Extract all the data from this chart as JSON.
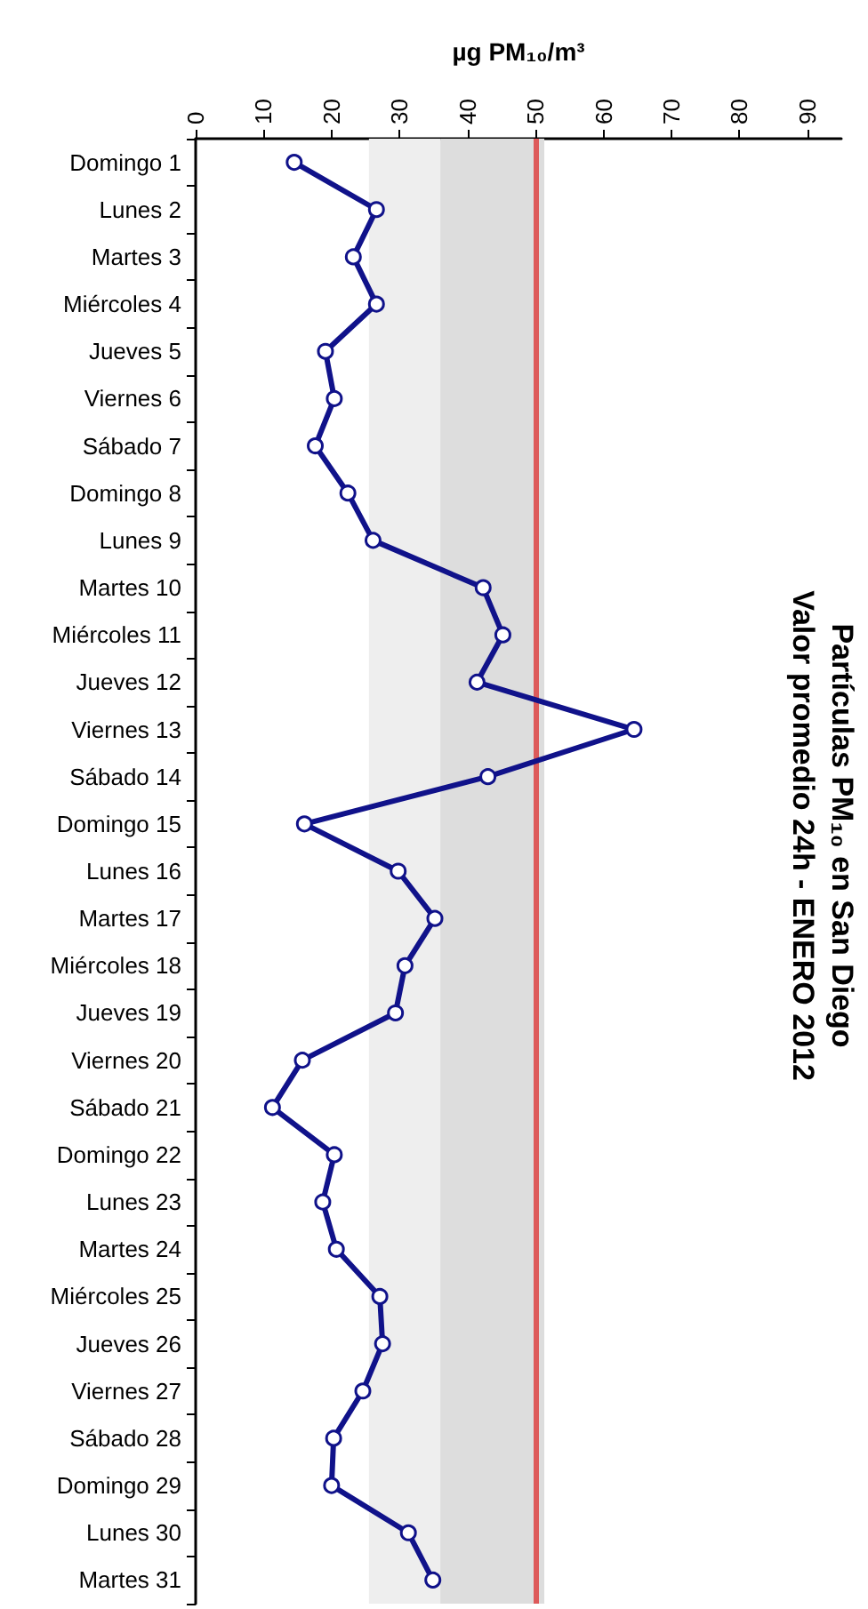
{
  "chart_data": {
    "type": "line",
    "orientation": "horizontal",
    "title": "Partículas PM₁₀ en San Diego",
    "subtitle": "Valor promedio 24h - ENERO 2012",
    "xlabel": "µg PM₁₀/m³",
    "categories": [
      "Domingo 1",
      "Lunes 2",
      "Martes 3",
      "Miércoles 4",
      "Jueves 5",
      "Viernes 6",
      "Sábado 7",
      "Domingo 8",
      "Lunes 9",
      "Martes 10",
      "Miércoles 11",
      "Jueves 12",
      "Viernes 13",
      "Sábado 14",
      "Domingo 15",
      "Lunes 16",
      "Martes 17",
      "Miércoles 18",
      "Jueves 19",
      "Viernes 20",
      "Sábado 21",
      "Domingo 22",
      "Lunes 23",
      "Martes 24",
      "Miércoles 25",
      "Jueves 26",
      "Viernes 27",
      "Sábado 28",
      "Domingo 29",
      "Lunes 30",
      "Martes 31"
    ],
    "series": [
      {
        "color": "#10128a",
        "values": [
          14.5,
          26.6,
          23.2,
          26.6,
          19.1,
          20.4,
          17.6,
          22.4,
          26.1,
          42.3,
          45.2,
          41.4,
          64.5,
          43.0,
          16.0,
          29.8,
          35.2,
          30.8,
          29.4,
          15.7,
          11.3,
          20.4,
          18.7,
          20.7,
          27.1,
          27.5,
          24.6,
          20.3,
          20.0,
          31.3,
          34.9
        ]
      }
    ],
    "xlim": [
      0,
      95
    ],
    "xticks": [
      0,
      10,
      20,
      30,
      40,
      50,
      60,
      70,
      80,
      90
    ],
    "bands": [
      {
        "axis": "x",
        "from": 25.5,
        "to": 36,
        "color": "#eeeeee"
      },
      {
        "axis": "x",
        "from": 36,
        "to": 51.3,
        "color": "#dddddd"
      }
    ],
    "ref_lines": [
      {
        "axis": "x",
        "value": 50,
        "color": "#dd5a5a"
      }
    ],
    "marker": "circle",
    "line_style": "solid",
    "grid": false
  }
}
